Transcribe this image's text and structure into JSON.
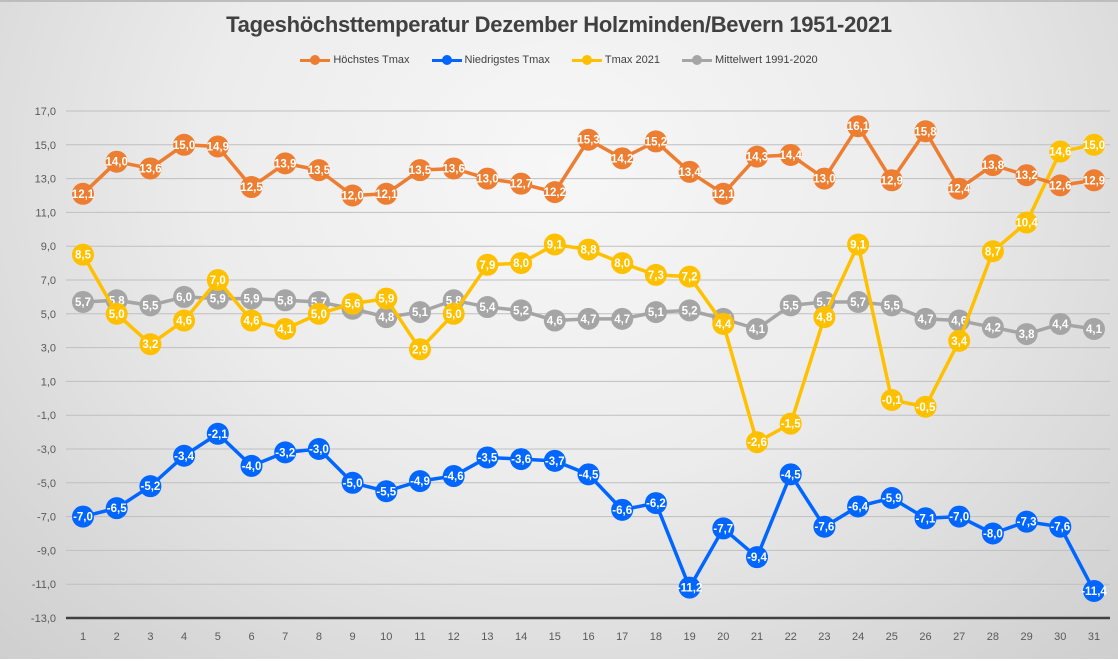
{
  "chart_data": {
    "type": "line",
    "title": "Tageshöchsttemperatur Dezember Holzminden/Bevern 1951-2021",
    "xlabel": "",
    "ylabel": "",
    "ylim": [
      -13,
      17
    ],
    "y_ticks": [
      "17,0",
      "15,0",
      "13,0",
      "11,0",
      "9,0",
      "7,0",
      "5,0",
      "3,0",
      "1,0",
      "-1,0",
      "-3,0",
      "-5,0",
      "-7,0",
      "-9,0",
      "-11,0",
      "-13,0"
    ],
    "y_tick_values": [
      17,
      15,
      13,
      11,
      9,
      7,
      5,
      3,
      1,
      -1,
      -3,
      -5,
      -7,
      -9,
      -11,
      -13
    ],
    "grid": true,
    "legend_position": "top",
    "decimal_separator": ",",
    "categories": [
      "1",
      "2",
      "3",
      "4",
      "5",
      "6",
      "7",
      "8",
      "9",
      "10",
      "11",
      "12",
      "13",
      "14",
      "15",
      "16",
      "17",
      "18",
      "19",
      "20",
      "21",
      "22",
      "23",
      "24",
      "25",
      "26",
      "27",
      "28",
      "29",
      "30",
      "31"
    ],
    "series": [
      {
        "name": "Höchstes Tmax",
        "color": "#ED7D31",
        "values": [
          12.1,
          14.0,
          13.6,
          15.0,
          14.9,
          12.5,
          13.9,
          13.5,
          12.0,
          12.1,
          13.5,
          13.6,
          13.0,
          12.7,
          12.2,
          15.3,
          14.2,
          15.2,
          13.4,
          12.1,
          14.3,
          14.4,
          13.0,
          16.1,
          12.9,
          15.8,
          12.4,
          13.8,
          13.2,
          12.6,
          12.9
        ]
      },
      {
        "name": "Niedrigstes Tmax",
        "color": "#0066FF",
        "values": [
          -7.0,
          -6.5,
          -5.2,
          -3.4,
          -2.1,
          -4.0,
          -3.2,
          -3.0,
          -5.0,
          -5.5,
          -4.9,
          -4.6,
          -3.5,
          -3.6,
          -3.7,
          -4.5,
          -6.6,
          -6.2,
          -11.2,
          -7.7,
          -9.4,
          -4.5,
          -7.6,
          -6.4,
          -5.9,
          -7.1,
          -7.0,
          -8.0,
          -7.3,
          -7.6,
          -11.4
        ]
      },
      {
        "name": "Tmax 2021",
        "color": "#FFC000",
        "values": [
          8.5,
          5.0,
          3.2,
          4.6,
          7.0,
          4.6,
          4.1,
          5.0,
          5.6,
          5.9,
          2.9,
          5.0,
          7.9,
          8.0,
          9.1,
          8.8,
          8.0,
          7.3,
          7.2,
          4.4,
          -2.6,
          -1.5,
          4.8,
          9.1,
          -0.1,
          -0.5,
          3.4,
          8.7,
          10.4,
          14.6,
          15.0
        ]
      },
      {
        "name": "Mittelwert 1991-2020",
        "color": "#A5A5A5",
        "values": [
          5.7,
          5.8,
          5.5,
          6.0,
          5.9,
          5.9,
          5.8,
          5.7,
          5.3,
          4.8,
          5.1,
          5.8,
          5.4,
          5.2,
          4.6,
          4.7,
          4.7,
          5.1,
          5.2,
          4.7,
          4.1,
          5.5,
          5.7,
          5.7,
          5.5,
          4.7,
          4.6,
          4.2,
          3.8,
          4.4,
          4.1
        ]
      }
    ],
    "draw_order": [
      3,
      2,
      1,
      0
    ]
  }
}
